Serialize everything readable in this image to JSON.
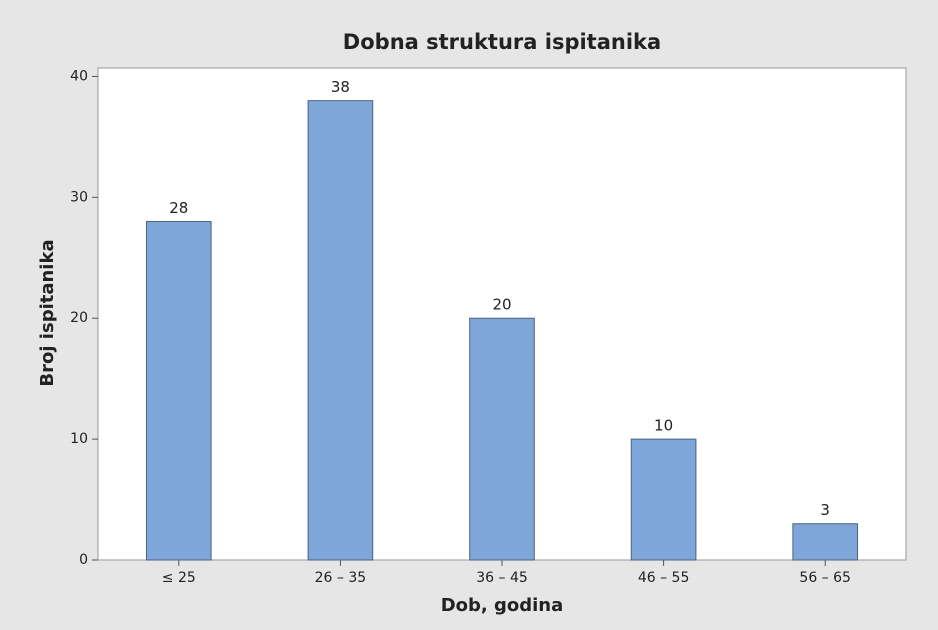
{
  "chart_data": {
    "type": "bar",
    "title": "Dobna struktura ispitanika",
    "x_label": "Dob, godina",
    "y_label": "Broj ispitanika",
    "categories": [
      "≤ 25",
      "26 – 35",
      "36 – 45",
      "46 – 55",
      "56 – 65"
    ],
    "values": [
      28,
      38,
      20,
      10,
      3
    ],
    "color": "#7ea6d9",
    "ylim": [
      0,
      40.7
    ],
    "yticks": [
      0,
      10,
      20,
      30,
      40
    ],
    "grid": false
  }
}
